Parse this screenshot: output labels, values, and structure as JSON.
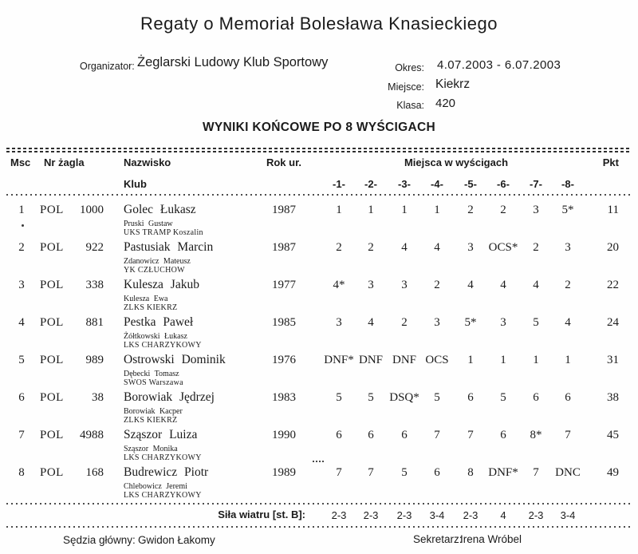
{
  "title": "Regaty o Memoriał Bolesława Knasieckiego",
  "meta": {
    "organizer_label": "Organizator:",
    "organizer": "Żeglarski Ludowy Klub Sportowy",
    "period_label": "Okres:",
    "period": "4.07.2003 - 6.07.2003",
    "place_label": "Miejsce:",
    "place": "Kiekrz",
    "class_label": "Klasa:",
    "class": "420"
  },
  "section_title": "WYNIKI KOŃCOWE PO 8 WYŚCIGACH",
  "table": {
    "headers": {
      "msc": "Msc",
      "sail": "Nr żagla",
      "name": "Nazwisko",
      "club": "Klub",
      "year": "Rok ur.",
      "races_group": "Miejsca w wyścigach",
      "race_cols": [
        "-1-",
        "-2-",
        "-3-",
        "-4-",
        "-5-",
        "-6-",
        "-7-",
        "-8-"
      ],
      "pkt": "Pkt"
    },
    "rows": [
      {
        "msc": "1",
        "country": "POL",
        "sail": "1000",
        "name": "Golec Łukasz",
        "crew": "Pruski Gustaw",
        "club": "UKS TRAMP Koszalin",
        "year": "1987",
        "races": [
          "1",
          "1",
          "1",
          "1",
          "2",
          "2",
          "3",
          "5*"
        ],
        "pkt": "11"
      },
      {
        "msc": "2",
        "country": "POL",
        "sail": "922",
        "name": "Pastusiak Marcin",
        "crew": "Zdanowicz Mateusz",
        "club": "YK CZŁUCHOW",
        "year": "1987",
        "races": [
          "2",
          "2",
          "4",
          "4",
          "3",
          "OCS*",
          "2",
          "3"
        ],
        "pkt": "20"
      },
      {
        "msc": "3",
        "country": "POL",
        "sail": "338",
        "name": "Kulesza Jakub",
        "crew": "Kulesza Ewa",
        "club": "ZLKS KIEKRZ",
        "year": "1977",
        "races": [
          "4*",
          "3",
          "3",
          "2",
          "4",
          "4",
          "4",
          "2"
        ],
        "pkt": "22"
      },
      {
        "msc": "4",
        "country": "POL",
        "sail": "881",
        "name": "Pestka Paweł",
        "crew": "Żółtkowski Łukasz",
        "club": "LKS CHARZYKOWY",
        "year": "1985",
        "races": [
          "3",
          "4",
          "2",
          "3",
          "5*",
          "3",
          "5",
          "4"
        ],
        "pkt": "24"
      },
      {
        "msc": "5",
        "country": "POL",
        "sail": "989",
        "name": "Ostrowski Dominik",
        "crew": "Dębecki Tomasz",
        "club": "SWOS Warszawa",
        "year": "1976",
        "races": [
          "DNF*",
          "DNF",
          "DNF",
          "OCS",
          "1",
          "1",
          "1",
          "1"
        ],
        "pkt": "31"
      },
      {
        "msc": "6",
        "country": "POL",
        "sail": "38",
        "name": "Borowiak Jędrzej",
        "crew": "Borowiak Kacper",
        "club": "ZLKS KIEKRZ",
        "year": "1983",
        "races": [
          "5",
          "5",
          "DSQ*",
          "5",
          "6",
          "5",
          "6",
          "6"
        ],
        "pkt": "38"
      },
      {
        "msc": "7",
        "country": "POL",
        "sail": "4988",
        "name": "Sząszor Luiza",
        "crew": "Sząszor Monika",
        "club": "LKS CHARZYKOWY",
        "year": "1990",
        "races": [
          "6",
          "6",
          "6",
          "7",
          "7",
          "6",
          "8*",
          "7"
        ],
        "pkt": "45"
      },
      {
        "msc": "8",
        "country": "POL",
        "sail": "168",
        "name": "Budrewicz Piotr",
        "crew": "Chlebowicz Jeremi",
        "club": "LKS CHARZYKOWY",
        "year": "1989",
        "races": [
          "7",
          "7",
          "5",
          "6",
          "8",
          "DNF*",
          "7",
          "DNC"
        ],
        "pkt": "49"
      }
    ]
  },
  "wind": {
    "label": "Siła wiatru [st. B]:",
    "values": [
      "2-3",
      "2-3",
      "2-3",
      "3-4",
      "2-3",
      "4",
      "2-3",
      "3-4"
    ]
  },
  "footer": {
    "judge_label": "Sędzia główny:",
    "judge": "Gwidon Łakomy",
    "secretary_label": "Sekretarz:",
    "secretary": "Irena Wróbel"
  }
}
